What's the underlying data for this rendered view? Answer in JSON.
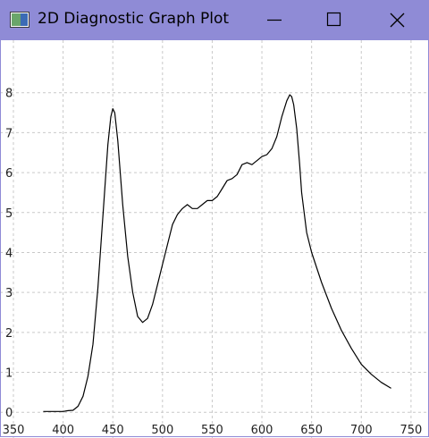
{
  "window": {
    "title": "2D Diagnostic Graph Plot",
    "accent_color": "#8f8bd6",
    "controls": [
      "minimize-icon",
      "maximize-icon",
      "close-icon"
    ]
  },
  "chart_data": {
    "type": "line",
    "title": "",
    "xlabel": "",
    "ylabel": "",
    "xlim": [
      350,
      760
    ],
    "ylim": [
      -0.6,
      8.8
    ],
    "grid": true,
    "x_ticks": [
      350,
      400,
      450,
      500,
      550,
      600,
      650,
      700,
      750
    ],
    "y_ticks": [
      0,
      1,
      2,
      3,
      4,
      5,
      6,
      7,
      8
    ],
    "series": [
      {
        "color": "#000000",
        "x": [
          380,
          390,
          400,
          405,
          410,
          415,
          420,
          425,
          430,
          435,
          440,
          445,
          448,
          450,
          452,
          455,
          460,
          465,
          470,
          475,
          480,
          485,
          490,
          495,
          500,
          505,
          510,
          515,
          520,
          525,
          530,
          535,
          540,
          545,
          550,
          555,
          560,
          565,
          570,
          575,
          580,
          585,
          590,
          595,
          600,
          605,
          610,
          615,
          620,
          625,
          628,
          630,
          632,
          635,
          638,
          640,
          645,
          650,
          660,
          670,
          680,
          690,
          700,
          710,
          720,
          730
        ],
        "y": [
          0.02,
          0.02,
          0.02,
          0.04,
          0.05,
          0.15,
          0.4,
          0.9,
          1.7,
          3.1,
          4.9,
          6.7,
          7.4,
          7.6,
          7.5,
          6.8,
          5.2,
          3.9,
          3.0,
          2.4,
          2.25,
          2.35,
          2.7,
          3.2,
          3.7,
          4.2,
          4.7,
          4.95,
          5.1,
          5.2,
          5.1,
          5.1,
          5.2,
          5.3,
          5.3,
          5.4,
          5.6,
          5.8,
          5.85,
          5.95,
          6.2,
          6.25,
          6.2,
          6.3,
          6.4,
          6.45,
          6.6,
          6.9,
          7.4,
          7.8,
          7.95,
          7.9,
          7.7,
          7.1,
          6.2,
          5.5,
          4.5,
          4.0,
          3.25,
          2.6,
          2.05,
          1.6,
          1.2,
          0.95,
          0.75,
          0.6
        ]
      }
    ]
  }
}
